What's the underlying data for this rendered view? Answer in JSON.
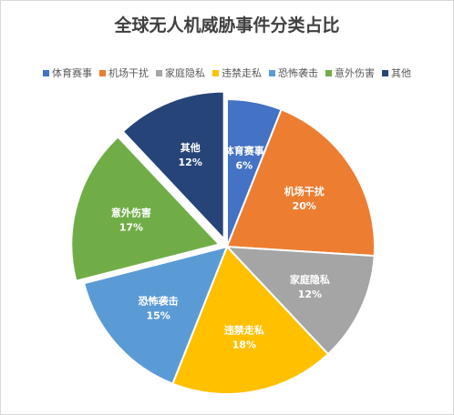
{
  "chart_data": {
    "type": "pie",
    "title": "全球无人机威胁事件分类占比",
    "categories": [
      "体育赛事",
      "机场干扰",
      "家庭隐私",
      "违禁走私",
      "恐怖袭击",
      "意外伤害",
      "其他"
    ],
    "values": [
      6,
      20,
      12,
      18,
      15,
      17,
      12
    ],
    "value_labels": [
      "6%",
      "20%",
      "12%",
      "18%",
      "15%",
      "17%",
      "12%"
    ],
    "colors": [
      "#4472C4",
      "#ED7D31",
      "#A5A5A5",
      "#FFC000",
      "#5B9BD5",
      "#70AD47",
      "#264478"
    ],
    "exploded": [
      "意外伤害",
      "其他"
    ],
    "legend_position": "top"
  }
}
